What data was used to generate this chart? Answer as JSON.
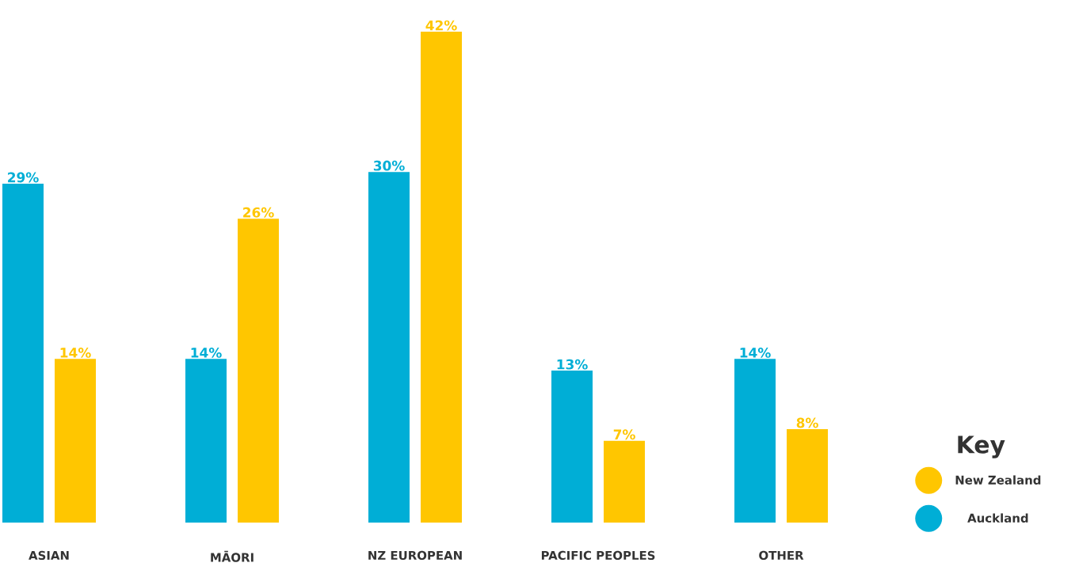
{
  "chart_data": {
    "type": "bar",
    "categories": [
      "ASIAN",
      "MĀORI",
      "NZ EUROPEAN",
      "PACIFIC PEOPLES",
      "OTHER"
    ],
    "series": [
      {
        "name": "Auckland",
        "color": "#00aed6",
        "values": [
          29,
          14,
          30,
          13,
          14
        ],
        "value_labels": [
          "29%",
          "14%",
          "30%",
          "13%",
          "14%"
        ]
      },
      {
        "name": "New Zealand",
        "color": "#ffc600",
        "values": [
          14,
          26,
          42,
          7,
          8
        ],
        "value_labels": [
          "14%",
          "26%",
          "42%",
          "7%",
          "8%"
        ]
      }
    ],
    "legend_title": "Key",
    "legend": "right"
  }
}
